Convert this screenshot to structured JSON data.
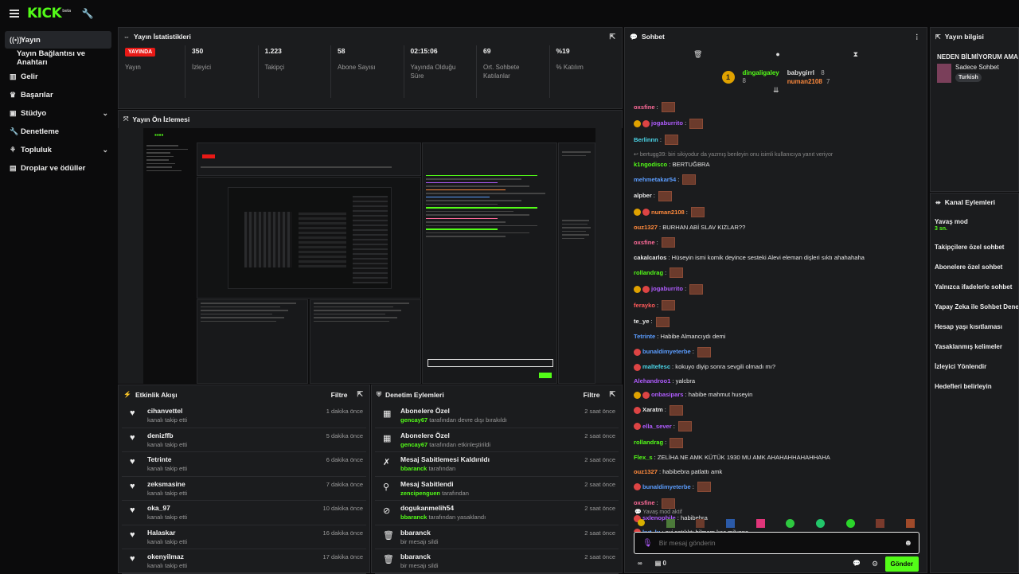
{
  "brand": {
    "logo": "KICK",
    "logo_mark": "beta",
    "accent": "#53fc18",
    "live_color": "#e91916"
  },
  "sidebar": {
    "items": [
      {
        "label": "Yayın",
        "icon": "broadcast-icon",
        "active": true
      },
      {
        "label": "Yayın Bağlantısı ve Anahtarı",
        "sub": true
      },
      {
        "label": "Gelir",
        "icon": "chart-icon"
      },
      {
        "label": "Başarılar",
        "icon": "trophy-icon"
      },
      {
        "label": "Stüdyo",
        "icon": "studio-icon",
        "chevron": true
      },
      {
        "label": "Denetleme",
        "icon": "wrench-icon"
      },
      {
        "label": "Topluluk",
        "icon": "community-icon",
        "chevron": true
      },
      {
        "label": "Droplar ve ödüller",
        "icon": "gift-icon"
      }
    ]
  },
  "stats": {
    "title": "Yayın İstatistikleri",
    "items": [
      {
        "value": "YAYINDA",
        "label": "Yayın"
      },
      {
        "value": "350",
        "label": "İzleyici"
      },
      {
        "value": "1.223",
        "label": "Takipçi"
      },
      {
        "value": "58",
        "label": "Abone Sayısı"
      },
      {
        "value": "02:15:06",
        "label": "Yayında Olduğu Süre"
      },
      {
        "value": "69",
        "label": "Ort. Sohbete Katılanlar"
      },
      {
        "value": "%19",
        "label": "% Katılım"
      }
    ]
  },
  "preview": {
    "title": "Yayın Ön İzlemesi"
  },
  "activity": {
    "title": "Etkinlik Akışı",
    "filter": "Filtre",
    "rows": [
      {
        "name": "cihanvettel",
        "sub": "kanalı takip etti",
        "time": "1 dakika önce"
      },
      {
        "name": "denizffb",
        "sub": "kanalı takip etti",
        "time": "5 dakika önce"
      },
      {
        "name": "Tetrinte",
        "sub": "kanalı takip etti",
        "time": "6 dakika önce"
      },
      {
        "name": "zeksmasine",
        "sub": "kanalı takip etti",
        "time": "7 dakika önce"
      },
      {
        "name": "oka_97",
        "sub": "kanalı takip etti",
        "time": "10 dakika önce"
      },
      {
        "name": "Halaskar",
        "sub": "kanalı takip etti",
        "time": "16 dakika önce"
      },
      {
        "name": "okenyilmaz",
        "sub": "kanalı takip etti",
        "time": "17 dakika önce"
      }
    ]
  },
  "moderation": {
    "title": "Denetim Eylemleri",
    "filter": "Filtre",
    "rows": [
      {
        "icon": "gift-icon",
        "name": "Abonelere Özel",
        "actor": "gencay67",
        "sub": " tarafından devre dışı bırakıldı",
        "time": "2 saat önce"
      },
      {
        "icon": "gift-icon",
        "name": "Abonelere Özel",
        "actor": "gencay67",
        "sub": " tarafından etkinleştirildi",
        "time": "2 saat önce"
      },
      {
        "icon": "unpin-icon",
        "name": "Mesaj Sabitlemesi Kaldırıldı",
        "actor": "bbaranck",
        "sub": " tarafından",
        "time": "2 saat önce"
      },
      {
        "icon": "pin-icon",
        "name": "Mesaj Sabitlendi",
        "actor": "zencipenguen",
        "sub": " tarafından",
        "time": "2 saat önce"
      },
      {
        "icon": "ban-icon",
        "name": "dogukanmelih54",
        "actor": "bbaranck",
        "sub": " tarafından yasaklandı",
        "time": "2 saat önce"
      },
      {
        "icon": "trash-icon",
        "name": "bbaranck",
        "actor": "",
        "sub": "bir mesajı sildi",
        "time": "2 saat önce"
      },
      {
        "icon": "trash-icon",
        "name": "bbaranck",
        "actor": "",
        "sub": "bir mesajı sildi",
        "time": "2 saat önce"
      }
    ]
  },
  "chat": {
    "title": "Sohbet",
    "pinned": {
      "gifter": "dingaligaley",
      "gifter_count": "8",
      "top1": "babygirrl",
      "top1_count": "8",
      "top2": "numan2108",
      "top2_count": "7"
    },
    "messages": [
      {
        "user": "oxsfine",
        "color": "#ff6b9a",
        "text": "",
        "emote": true
      },
      {
        "user": "jogaburrito",
        "color": "#b05cff",
        "text": "",
        "badges": [
          "#e0a200",
          "#dd4444"
        ],
        "emote": true
      },
      {
        "user": "Berlinnn",
        "color": "#4bd5e8",
        "text": "",
        "emote": true
      },
      {
        "reply": "bertugg39: biri sikiyodur da yazmış benleyin onu isimli kullanıcıya yanıt veriyor"
      },
      {
        "user": "k1ngodisco",
        "color": "#53fc18",
        "text": "BERTUĞBRA"
      },
      {
        "user": "mehmetakar54",
        "color": "#5b9dff",
        "text": "",
        "emote": true
      },
      {
        "user": "alpber",
        "color": "#e8e8e8",
        "text": "",
        "emote": true
      },
      {
        "user": "numan2108",
        "color": "#ff8a3d",
        "text": "",
        "badges": [
          "#e0a200",
          "#dd4444"
        ],
        "emote": true
      },
      {
        "user": "ouz1327",
        "color": "#ff8a3d",
        "text": "BURHAN ABİ SLAV KIZLAR??"
      },
      {
        "user": "oxsfine",
        "color": "#ff6b9a",
        "text": "",
        "emote": true
      },
      {
        "user": "cakalcarlos",
        "color": "#e8e8e8",
        "text": "Hüseyin ismi komik deyince sesteki Alevi eleman dişleri sıktı ahahahaha"
      },
      {
        "user": "rollandrag",
        "color": "#53fc18",
        "text": "",
        "emote": true
      },
      {
        "user": "jogaburrito",
        "color": "#b05cff",
        "text": "",
        "badges": [
          "#e0a200",
          "#dd4444"
        ],
        "emote": true
      },
      {
        "user": "ferayko",
        "color": "#ff5a5a",
        "text": "",
        "emote": true
      },
      {
        "user": "te_ye",
        "color": "#e8e8e8",
        "text": "",
        "emote": true
      },
      {
        "user": "Tetrinte",
        "color": "#5b9dff",
        "text": "Habibe Almancıydı demi"
      },
      {
        "user": "bunaldimyeterbe",
        "color": "#5b9dff",
        "text": "",
        "badges": [
          "#dd4444"
        ],
        "emote": true
      },
      {
        "user": "maltefesc",
        "color": "#4bd5e8",
        "text": "kokuyo diyip sonra sevgili olmadı mı?",
        "badges": [
          "#dd4444"
        ]
      },
      {
        "user": "Alehandroo1",
        "color": "#b05cff",
        "text": "yalcbra"
      },
      {
        "user": "onbasipars",
        "color": "#b05cff",
        "text": "habibe mahmut huseyin",
        "badges": [
          "#e0a200",
          "#dd4444"
        ]
      },
      {
        "user": "Xaratm",
        "color": "#e8e8e8",
        "text": "",
        "badges": [
          "#dd4444"
        ],
        "emote": true
      },
      {
        "user": "ella_sever",
        "color": "#b05cff",
        "text": "",
        "badges": [
          "#dd4444"
        ],
        "emote": true
      },
      {
        "user": "rollandrag",
        "color": "#53fc18",
        "text": "",
        "emote": true
      },
      {
        "user": "Flex_s",
        "color": "#53fc18",
        "text": "ZELİHA NE AMK KÜTÜK 1930 MU AMK AHAHAHHAHAHHAHA"
      },
      {
        "user": "ouz1327",
        "color": "#ff8a3d",
        "text": "habibebra patlattı amk"
      },
      {
        "user": "bunaldimyeterbe",
        "color": "#5b9dff",
        "text": "",
        "badges": [
          "#dd4444"
        ],
        "emote": true
      },
      {
        "user": "oxsfine",
        "color": "#ff6b9a",
        "text": "",
        "emote": true
      },
      {
        "user": "sxlenophile",
        "color": "#b05cff",
        "text": "habibebra",
        "badges": [
          "#dd4444"
        ]
      },
      {
        "user": "kut_lu",
        "color": "#5b9dff",
        "text": "evi satılıktı bilmem kaç milyona",
        "badges": [
          "#dd4444"
        ]
      }
    ],
    "slow_notice": "Yavaş mod aktif",
    "input_placeholder": "Bir mesaj gönderin",
    "viewers": "0",
    "send_label": "Gönder"
  },
  "stream_info": {
    "title": "Yayın bilgisi",
    "stream_title": "NEDEN BİLMİYORUM AMA",
    "category": "Sadece Sohbet",
    "tag": "Turkish"
  },
  "channel_actions": {
    "title": "Kanal Eylemleri",
    "slow_mode": "Yavaş mod",
    "slow_value": "3 sn.",
    "items": [
      "Takipçilere özel sohbet",
      "Abonelere özel sohbet",
      "Yalnızca ifadelerle sohbet",
      "Yapay Zeka ile Sohbet Dene",
      "Hesap yaşı kısıtlaması",
      "Yasaklanmış kelimeler",
      "İzleyici Yönlendir",
      "Hedefleri belirleyin"
    ]
  }
}
